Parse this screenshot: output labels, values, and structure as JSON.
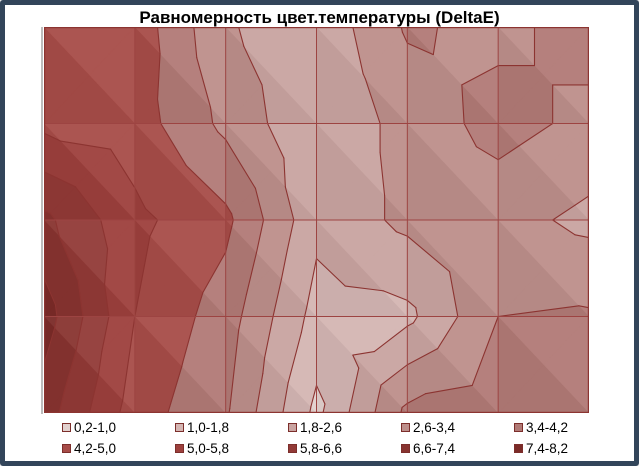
{
  "frame": {
    "border_color": "#32455a",
    "background": "#ffffff"
  },
  "title": "Равномерность цвет.температуры (DeltaE)",
  "chart_data": {
    "type": "heatmap",
    "subtype": "excel-contour-surface-top-view",
    "title": "Равномерность цвет.температуры (DeltaE)",
    "grid": {
      "cols": 7,
      "rows": 4,
      "node_cols": 7,
      "node_rows": 5,
      "gridlines": true
    },
    "z_units": "DeltaE",
    "z": [
      [
        4.7,
        4.7,
        2.7,
        2.0,
        3.5,
        3.2,
        3.7
      ],
      [
        4.8,
        4.6,
        3.2,
        1.9,
        2.9,
        3.7,
        3.2
      ],
      [
        6.8,
        5.2,
        4.4,
        2.0,
        2.8,
        2.9,
        2.4
      ],
      [
        7.8,
        5.0,
        3.8,
        1.5,
        1.6,
        3.4,
        3.5
      ],
      [
        7.0,
        4.6,
        3.5,
        0.8,
        3.6,
        3.8,
        3.8
      ]
    ],
    "levels": [
      0.2,
      1.0,
      1.8,
      2.6,
      3.4,
      4.2,
      5.0,
      5.8,
      6.6,
      7.4,
      8.2
    ],
    "bands": [
      {
        "label": "0,2-1,0",
        "color": "#e2d1ce"
      },
      {
        "label": "1,0-1,8",
        "color": "#d4b6b3"
      },
      {
        "label": "1,8-2,6",
        "color": "#c9a4a1"
      },
      {
        "label": "2,6-3,4",
        "color": "#bd8f8b"
      },
      {
        "label": "3,4-4,2",
        "color": "#b17a76"
      },
      {
        "label": "4,2-5,0",
        "color": "#a74c48"
      },
      {
        "label": "5,0-5,8",
        "color": "#9d403d"
      },
      {
        "label": "5,8-6,6",
        "color": "#923a37"
      },
      {
        "label": "6,6-7,4",
        "color": "#883430"
      },
      {
        "label": "7,4-8,2",
        "color": "#7b2b28"
      }
    ],
    "line_color": "#8c3431",
    "grid_color": "#9d4442",
    "legend_position": "bottom"
  }
}
